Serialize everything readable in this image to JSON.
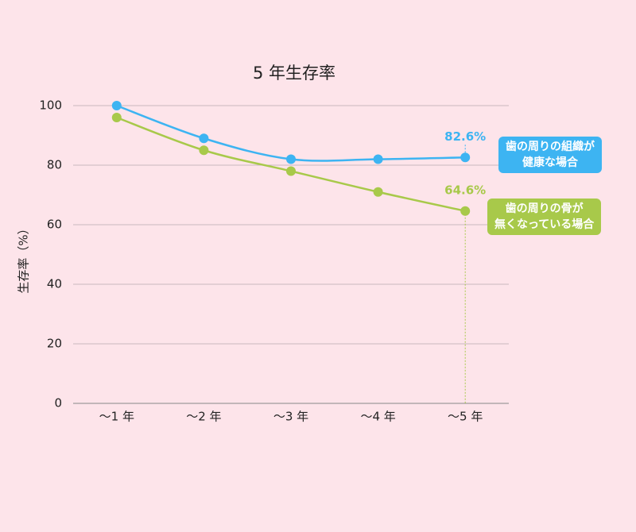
{
  "chart_data": {
    "type": "line",
    "title": "5 年生存率",
    "y_label": "生存率（%）",
    "categories": [
      "～1 年",
      "～2 年",
      "～3 年",
      "～4 年",
      "～5 年"
    ],
    "series": [
      {
        "name": "歯の周りの組織が\n健康な場合",
        "color": "#3db4f2",
        "values": [
          100,
          89,
          82,
          82,
          82.6
        ],
        "value_labels": [
          null,
          null,
          null,
          null,
          "82.6%"
        ]
      },
      {
        "name": "歯の周りの骨が\n無くなっている場合",
        "color": "#a8c94a",
        "values": [
          96,
          85,
          78,
          71,
          64.6
        ],
        "value_labels": [
          null,
          null,
          null,
          null,
          "64.6%"
        ]
      }
    ],
    "ylim": [
      0,
      100
    ],
    "yticks": [
      0,
      20,
      40,
      60,
      80,
      100
    ],
    "grid": true
  }
}
